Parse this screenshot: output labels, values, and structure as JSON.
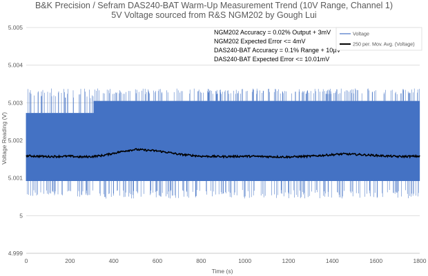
{
  "chart_data": {
    "type": "line",
    "title": "B&K Precision / Sefram DAS240-BAT Warm-Up Measurement Trend (10V Range, Channel 1)",
    "subtitle": "5V Voltage sourced from R&S NGM202 by Gough Lui",
    "xlabel": "Time (s)",
    "ylabel": "Voltage Reading (V)",
    "xlim": [
      0,
      1800
    ],
    "ylim": [
      4.999,
      5.005
    ],
    "x_ticks": [
      0,
      200,
      400,
      600,
      800,
      1000,
      1200,
      1400,
      1600,
      1800
    ],
    "y_ticks": [
      4.999,
      5,
      5.001,
      5.002,
      5.003,
      5.004,
      5.005
    ],
    "y_tick_labels": [
      "4.999",
      "5",
      "5.001",
      "5.002",
      "5.003",
      "5.004",
      "5.005"
    ],
    "grid": "horizontal",
    "legend_position": "top-right",
    "annotations": [
      "NGM202 Accuracy = 0.02% Output + 3mV",
      "NGM202 Expected Error <= 4mV",
      "DAS240-BAT Accuracy = 0.1% Range + 10µV",
      "DAS240-BAT Expected Error <= 10.01mV"
    ],
    "series": [
      {
        "name": "Voltage",
        "color": "#4472C4",
        "style": "dense noisy band",
        "segments": [
          {
            "x_range": [
              0,
              310
            ],
            "band": [
              5.00092,
              5.00273
            ],
            "spikes": [
              5.0005,
              5.0034
            ]
          },
          {
            "x_range": [
              310,
              1800
            ],
            "band": [
              5.00092,
              5.00305
            ],
            "spikes": [
              5.00045,
              5.00338
            ]
          }
        ]
      },
      {
        "name": "250 per. Mov. Avg. (Voltage)",
        "color": "#000000",
        "style": "moving average",
        "x": [
          0,
          100,
          200,
          250,
          300,
          350,
          400,
          450,
          500,
          550,
          600,
          650,
          700,
          800,
          900,
          1000,
          1100,
          1200,
          1300,
          1400,
          1450,
          1500,
          1600,
          1700,
          1800
        ],
        "values": [
          5.00159,
          5.00157,
          5.00158,
          5.00156,
          5.00157,
          5.0016,
          5.00166,
          5.00172,
          5.00176,
          5.00174,
          5.00172,
          5.00168,
          5.00163,
          5.00158,
          5.00157,
          5.00158,
          5.00157,
          5.00156,
          5.00158,
          5.00162,
          5.00164,
          5.00163,
          5.0016,
          5.00157,
          5.00158
        ]
      }
    ]
  }
}
